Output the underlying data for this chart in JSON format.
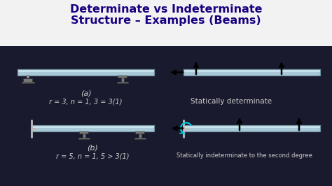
{
  "title_line1": "Determinate vs Indeterminate",
  "title_line2": "Structure – Examples (Beams)",
  "title_color": "#1a0080",
  "title_fontsize": 11.5,
  "bg_color": "#1a1a2e",
  "beam_face": "#a8c8d8",
  "beam_edge": "#7090a0",
  "beam_highlight": "#d0e8f0",
  "label_color": "#cccccc",
  "eq_color": "#cccccc",
  "text_color": "#cccccc",
  "support_face": "#888888",
  "support_edge": "#444444",
  "wall_color": "#999999",
  "arrow_color": "#000000",
  "curved_arrow_color": "#00aacc",
  "label_a": "(a)",
  "label_b": "(b)",
  "eq_a": "r = 3, n = 1, 3 = 3(1)",
  "eq_b": "r = 5, n = 1, 5 > 3(1)",
  "label_det": "Statically determinate",
  "label_indet": "Statically indeterminate to the second degree",
  "title_bg": "#f0f0f0"
}
